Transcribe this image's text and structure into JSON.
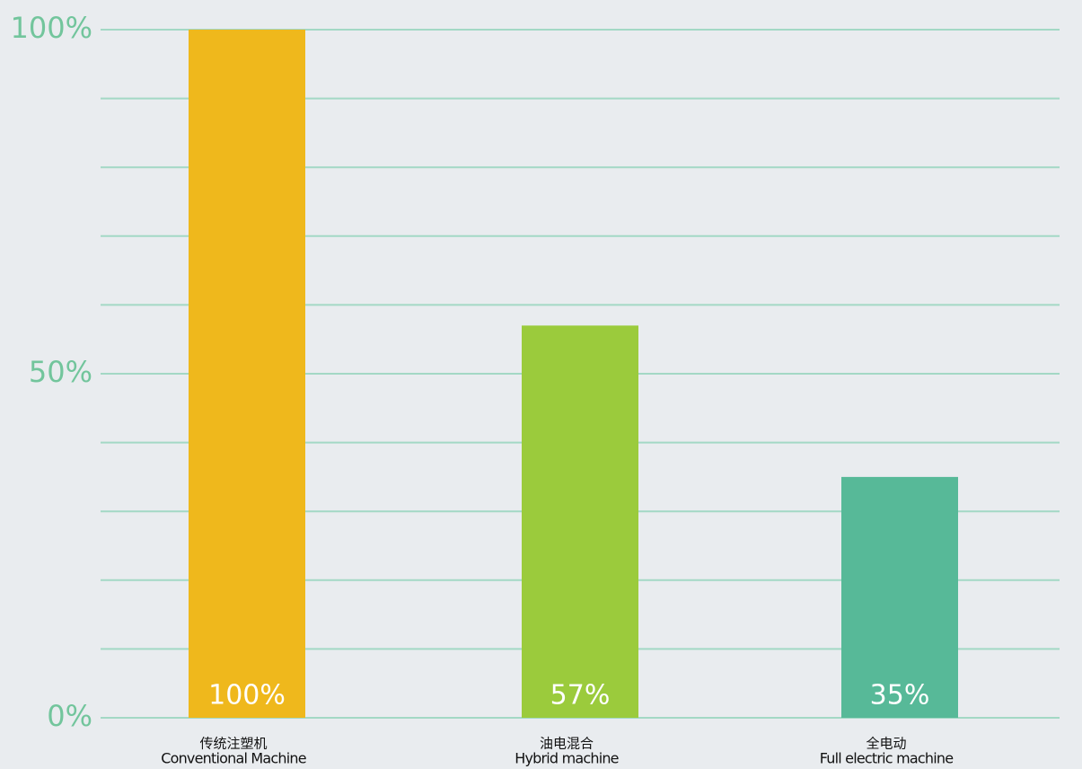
{
  "chart_data": {
    "type": "bar",
    "categories": [
      [
        "传统注塑机",
        "Conventional Machine"
      ],
      [
        "油电混合",
        "Hybrid machine"
      ],
      [
        "全电动",
        "Full electric machine"
      ]
    ],
    "values": [
      100,
      57,
      35
    ],
    "value_labels": [
      "100%",
      "57%",
      "35%"
    ],
    "colors": [
      "#efb81c",
      "#9bcb3c",
      "#57b998"
    ],
    "ylim": [
      0,
      100
    ],
    "yticks": [
      {
        "value": 0,
        "label": "0%"
      },
      {
        "value": 50,
        "label": "50%"
      },
      {
        "value": 100,
        "label": "100%"
      }
    ],
    "minor_yticks": [
      10,
      20,
      30,
      40,
      60,
      70,
      80,
      90
    ],
    "grid": true
  }
}
